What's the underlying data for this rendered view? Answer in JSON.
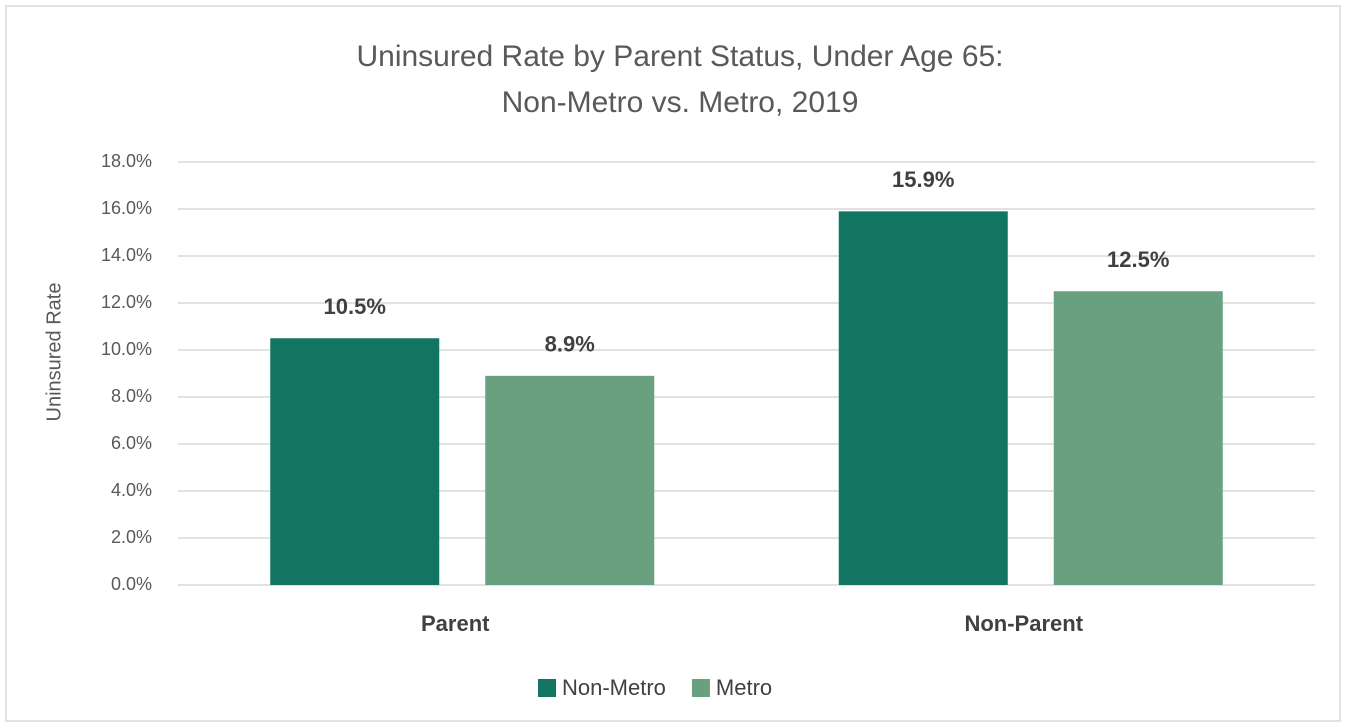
{
  "chart_data": {
    "type": "bar",
    "title": [
      "Uninsured Rate by Parent Status, Under Age 65:",
      "Non-Metro vs. Metro, 2019"
    ],
    "y_label": "Uninsured Rate",
    "categories": [
      "Parent",
      "Non-Parent"
    ],
    "series": [
      {
        "name": "Non-Metro",
        "color": "#117562",
        "values": [
          10.5,
          15.9
        ],
        "value_labels": [
          "10.5%",
          "15.9%"
        ]
      },
      {
        "name": "Metro",
        "color": "#69a080",
        "values": [
          8.9,
          12.5
        ],
        "value_labels": [
          "8.9%",
          "12.5%"
        ]
      }
    ],
    "ylim": [
      0,
      18
    ],
    "yticks": [
      {
        "value": 0,
        "label": "0.0%"
      },
      {
        "value": 2,
        "label": "2.0%"
      },
      {
        "value": 4,
        "label": "4.0%"
      },
      {
        "value": 6,
        "label": "6.0%"
      },
      {
        "value": 8,
        "label": "8.0%"
      },
      {
        "value": 10,
        "label": "10.0%"
      },
      {
        "value": 12,
        "label": "12.0%"
      },
      {
        "value": 14,
        "label": "14.0%"
      },
      {
        "value": 16,
        "label": "16.0%"
      },
      {
        "value": 18,
        "label": "18.0%"
      }
    ],
    "grid": true,
    "legend": "bottom"
  }
}
